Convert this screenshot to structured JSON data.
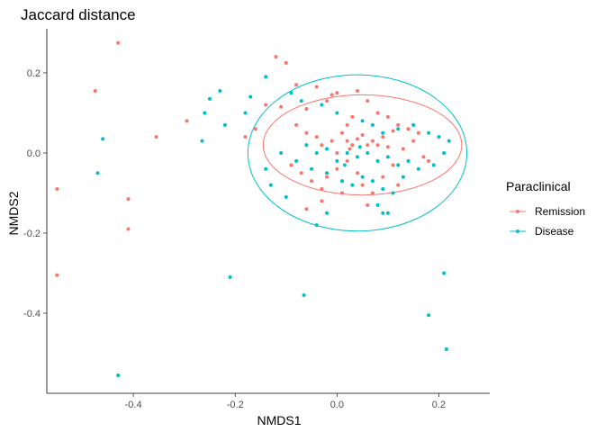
{
  "chart_data": {
    "type": "scatter",
    "title": "Jaccard distance",
    "xlabel": "NMDS1",
    "ylabel": "NMDS2",
    "xlim": [
      -0.57,
      0.3
    ],
    "ylim": [
      -0.6,
      0.31
    ],
    "x_ticks": [
      -0.4,
      -0.2,
      0.0,
      0.2
    ],
    "x_tick_labels": [
      "-0.4",
      "-0.2",
      "0.0",
      "0.2"
    ],
    "y_ticks": [
      -0.4,
      -0.2,
      0.0,
      0.2
    ],
    "y_tick_labels": [
      "-0.4",
      "-0.2",
      "0.0",
      "0.2"
    ],
    "grid": false,
    "legend": {
      "title": "Paraclinical",
      "position": "right"
    },
    "series": [
      {
        "name": "Remission",
        "color": "#F8766D",
        "ellipse": {
          "center": [
            0.05,
            0.02
          ],
          "rx": 0.195,
          "ry": 0.125
        },
        "points": [
          [
            -0.43,
            0.275
          ],
          [
            -0.475,
            0.155
          ],
          [
            -0.55,
            -0.09
          ],
          [
            -0.55,
            -0.305
          ],
          [
            -0.41,
            -0.115
          ],
          [
            -0.41,
            -0.19
          ],
          [
            -0.355,
            0.04
          ],
          [
            -0.295,
            0.08
          ],
          [
            -0.12,
            0.24
          ],
          [
            -0.1,
            0.225
          ],
          [
            -0.08,
            0.17
          ],
          [
            -0.04,
            0.165
          ],
          [
            -0.18,
            0.04
          ],
          [
            -0.16,
            0.06
          ],
          [
            -0.14,
            0.12
          ],
          [
            -0.11,
            0.115
          ],
          [
            -0.06,
            0.11
          ],
          [
            -0.02,
            0.13
          ],
          [
            -0.01,
            0.145
          ],
          [
            0.0,
            0.15
          ],
          [
            0.04,
            0.155
          ],
          [
            0.06,
            0.13
          ],
          [
            0.08,
            0.1
          ],
          [
            0.1,
            0.09
          ],
          [
            -0.08,
            0.07
          ],
          [
            -0.06,
            0.05
          ],
          [
            -0.04,
            0.04
          ],
          [
            -0.03,
            0.02
          ],
          [
            -0.01,
            0.03
          ],
          [
            0.01,
            0.05
          ],
          [
            0.02,
            0.07
          ],
          [
            0.03,
            0.09
          ],
          [
            0.02,
            0.03
          ],
          [
            0.03,
            0.02
          ],
          [
            0.04,
            0.035
          ],
          [
            0.05,
            0.045
          ],
          [
            0.06,
            0.02
          ],
          [
            0.07,
            0.03
          ],
          [
            0.08,
            0.02
          ],
          [
            0.09,
            0.04
          ],
          [
            0.1,
            0.015
          ],
          [
            0.11,
            0.055
          ],
          [
            0.12,
            0.07
          ],
          [
            0.13,
            0.01
          ],
          [
            0.14,
            0.06
          ],
          [
            0.15,
            0.03
          ],
          [
            0.16,
            0.05
          ],
          [
            0.17,
            -0.01
          ],
          [
            -0.09,
            -0.03
          ],
          [
            -0.07,
            -0.05
          ],
          [
            -0.05,
            -0.07
          ],
          [
            -0.03,
            -0.09
          ],
          [
            -0.02,
            -0.06
          ],
          [
            0.0,
            -0.04
          ],
          [
            0.02,
            -0.02
          ],
          [
            0.04,
            -0.05
          ],
          [
            0.05,
            -0.08
          ],
          [
            0.07,
            -0.1
          ],
          [
            0.09,
            -0.06
          ],
          [
            0.11,
            -0.03
          ],
          [
            -0.06,
            -0.14
          ],
          [
            -0.03,
            -0.12
          ],
          [
            0.01,
            -0.1
          ],
          [
            0.06,
            -0.13
          ],
          [
            0.12,
            -0.08
          ],
          [
            0.18,
            -0.02
          ],
          [
            0.0,
            0.0
          ],
          [
            0.025,
            0.01
          ]
        ]
      },
      {
        "name": "Disease",
        "color": "#00BFC4",
        "ellipse": {
          "center": [
            0.04,
            0.0
          ],
          "rx": 0.215,
          "ry": 0.195
        },
        "points": [
          [
            -0.43,
            -0.555
          ],
          [
            -0.47,
            -0.05
          ],
          [
            -0.46,
            0.035
          ],
          [
            -0.21,
            -0.31
          ],
          [
            -0.065,
            -0.355
          ],
          [
            0.21,
            -0.3
          ],
          [
            0.18,
            -0.405
          ],
          [
            0.215,
            -0.49
          ],
          [
            -0.23,
            0.155
          ],
          [
            -0.25,
            0.135
          ],
          [
            -0.26,
            0.1
          ],
          [
            -0.265,
            0.03
          ],
          [
            -0.14,
            0.19
          ],
          [
            -0.17,
            0.14
          ],
          [
            -0.18,
            0.1
          ],
          [
            -0.22,
            0.07
          ],
          [
            -0.09,
            0.15
          ],
          [
            -0.07,
            0.13
          ],
          [
            -0.03,
            0.12
          ],
          [
            0.0,
            0.1
          ],
          [
            0.05,
            0.08
          ],
          [
            0.07,
            0.07
          ],
          [
            0.09,
            0.05
          ],
          [
            0.12,
            0.06
          ],
          [
            0.15,
            0.07
          ],
          [
            0.18,
            0.05
          ],
          [
            0.2,
            0.04
          ],
          [
            0.22,
            0.03
          ],
          [
            -0.06,
            0.02
          ],
          [
            -0.04,
            0.0
          ],
          [
            -0.02,
            0.01
          ],
          [
            0.0,
            -0.02
          ],
          [
            0.02,
            0.0
          ],
          [
            0.04,
            -0.01
          ],
          [
            0.06,
            0.0
          ],
          [
            0.08,
            -0.02
          ],
          [
            0.1,
            -0.01
          ],
          [
            0.12,
            -0.03
          ],
          [
            0.14,
            -0.02
          ],
          [
            0.16,
            -0.04
          ],
          [
            -0.08,
            -0.02
          ],
          [
            -0.05,
            -0.04
          ],
          [
            -0.02,
            -0.05
          ],
          [
            0.01,
            -0.07
          ],
          [
            0.03,
            -0.08
          ],
          [
            0.05,
            -0.06
          ],
          [
            0.07,
            -0.07
          ],
          [
            0.09,
            -0.09
          ],
          [
            0.11,
            -0.1
          ],
          [
            0.13,
            -0.06
          ],
          [
            0.08,
            -0.13
          ],
          [
            0.1,
            -0.15
          ],
          [
            0.09,
            -0.15
          ],
          [
            -0.04,
            -0.18
          ],
          [
            -0.02,
            -0.15
          ],
          [
            -0.1,
            -0.11
          ],
          [
            -0.13,
            -0.08
          ],
          [
            -0.14,
            -0.04
          ],
          [
            -0.11,
            0.0
          ],
          [
            0.19,
            -0.03
          ],
          [
            0.21,
            0.0
          ],
          [
            0.015,
            -0.03
          ],
          [
            0.045,
            0.015
          ]
        ]
      }
    ]
  }
}
